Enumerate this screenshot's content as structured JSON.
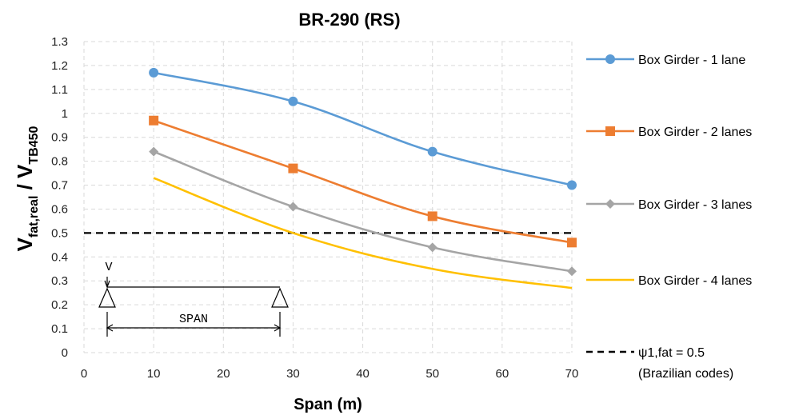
{
  "chart_data": {
    "type": "line",
    "title": "BR-290 (RS)",
    "xlabel": "Span (m)",
    "ylabel": {
      "main_v1": "V",
      "sub_1": "fat,real",
      "slash": " / V",
      "sub_2": "TB450"
    },
    "xlim": [
      0,
      70
    ],
    "ylim": [
      0,
      1.3
    ],
    "x_ticks": [
      "0",
      "10",
      "20",
      "30",
      "40",
      "50",
      "60",
      "70"
    ],
    "y_ticks": [
      "0",
      "0.1",
      "0.2",
      "0.3",
      "0.4",
      "0.5",
      "0.6",
      "0.7",
      "0.8",
      "0.9",
      "1",
      "1.1",
      "1.2",
      "1.3"
    ],
    "grid": true,
    "legend_position": "right",
    "x": [
      10,
      30,
      50,
      70
    ],
    "series": [
      {
        "name": "Box Girder - 1 lane",
        "values": [
          1.17,
          1.05,
          0.84,
          0.7
        ],
        "color": "#5b9bd5",
        "marker": "circle"
      },
      {
        "name": "Box Girder - 2 lanes",
        "values": [
          0.97,
          0.77,
          0.57,
          0.46
        ],
        "color": "#ed7d31",
        "marker": "square"
      },
      {
        "name": "Box Girder - 3 lanes",
        "values": [
          0.84,
          0.61,
          0.44,
          0.34
        ],
        "color": "#a5a5a5",
        "marker": "diamond"
      },
      {
        "name": "Box Girder - 4 lanes",
        "values": [
          0.73,
          0.5,
          0.35,
          0.27
        ],
        "color": "#ffc000",
        "marker": "none"
      }
    ],
    "reference_line": {
      "y": 0.5,
      "label_line1": "ψ1,fat = 0.5",
      "label_line2": "(Brazilian codes)",
      "color": "#000000",
      "style": "dashed"
    },
    "annotations": {
      "schematic_v_label": "V",
      "schematic_span_label": "SPAN"
    }
  }
}
